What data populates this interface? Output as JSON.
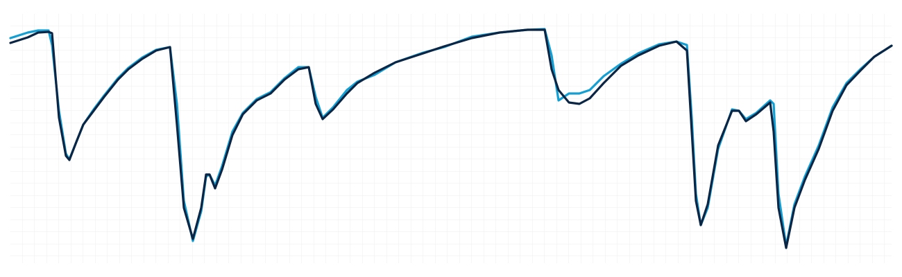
{
  "chart_data": {
    "type": "line",
    "x": [
      15,
      40,
      55,
      70,
      75,
      85,
      95,
      100,
      110,
      120,
      135,
      150,
      170,
      185,
      205,
      225,
      245,
      255,
      265,
      278,
      290,
      297,
      302,
      310,
      320,
      335,
      350,
      370,
      390,
      410,
      430,
      445,
      455,
      465,
      480,
      500,
      515,
      540,
      570,
      610,
      640,
      680,
      720,
      760,
      785,
      795,
      805,
      820,
      835,
      850,
      870,
      895,
      920,
      950,
      975,
      990,
      997,
      1003,
      1010,
      1020,
      1035,
      1055,
      1065,
      1075,
      1090,
      1110,
      1115,
      1122,
      1133,
      1145,
      1160,
      1180,
      1200,
      1220,
      1240,
      1260,
      1285
    ],
    "xlim": [
      15,
      1285
    ],
    "ylim": [
      20,
      380
    ],
    "grid": true,
    "series": [
      {
        "color": "#129fd4",
        "values": [
          345,
          353,
          356,
          356,
          335,
          240,
          178,
          170,
          195,
          220,
          242,
          262,
          287,
          302,
          317,
          328,
          332,
          250,
          110,
          52,
          95,
          145,
          148,
          132,
          160,
          210,
          237,
          257,
          267,
          287,
          303,
          303,
          260,
          230,
          245,
          270,
          282,
          292,
          310,
          324,
          332,
          347,
          353,
          357,
          358,
          320,
          255,
          265,
          265,
          270,
          290,
          308,
          323,
          336,
          340,
          335,
          230,
          120,
          75,
          100,
          185,
          242,
          240,
          228,
          237,
          255,
          250,
          120,
          45,
          105,
          145,
          190,
          245,
          280,
          300,
          318,
          334
        ]
      },
      {
        "color": "#0b2545",
        "values": [
          338,
          346,
          353,
          354,
          352,
          230,
          175,
          169,
          195,
          220,
          240,
          260,
          285,
          300,
          315,
          327,
          332,
          220,
          100,
          55,
          100,
          148,
          148,
          128,
          155,
          205,
          235,
          255,
          265,
          285,
          300,
          303,
          250,
          228,
          242,
          265,
          280,
          295,
          310,
          323,
          333,
          345,
          353,
          357,
          357,
          300,
          270,
          252,
          250,
          258,
          280,
          305,
          320,
          334,
          340,
          327,
          210,
          110,
          75,
          105,
          190,
          240,
          240,
          225,
          235,
          252,
          210,
          100,
          42,
          100,
          140,
          185,
          240,
          277,
          298,
          318,
          334
        ]
      }
    ]
  }
}
